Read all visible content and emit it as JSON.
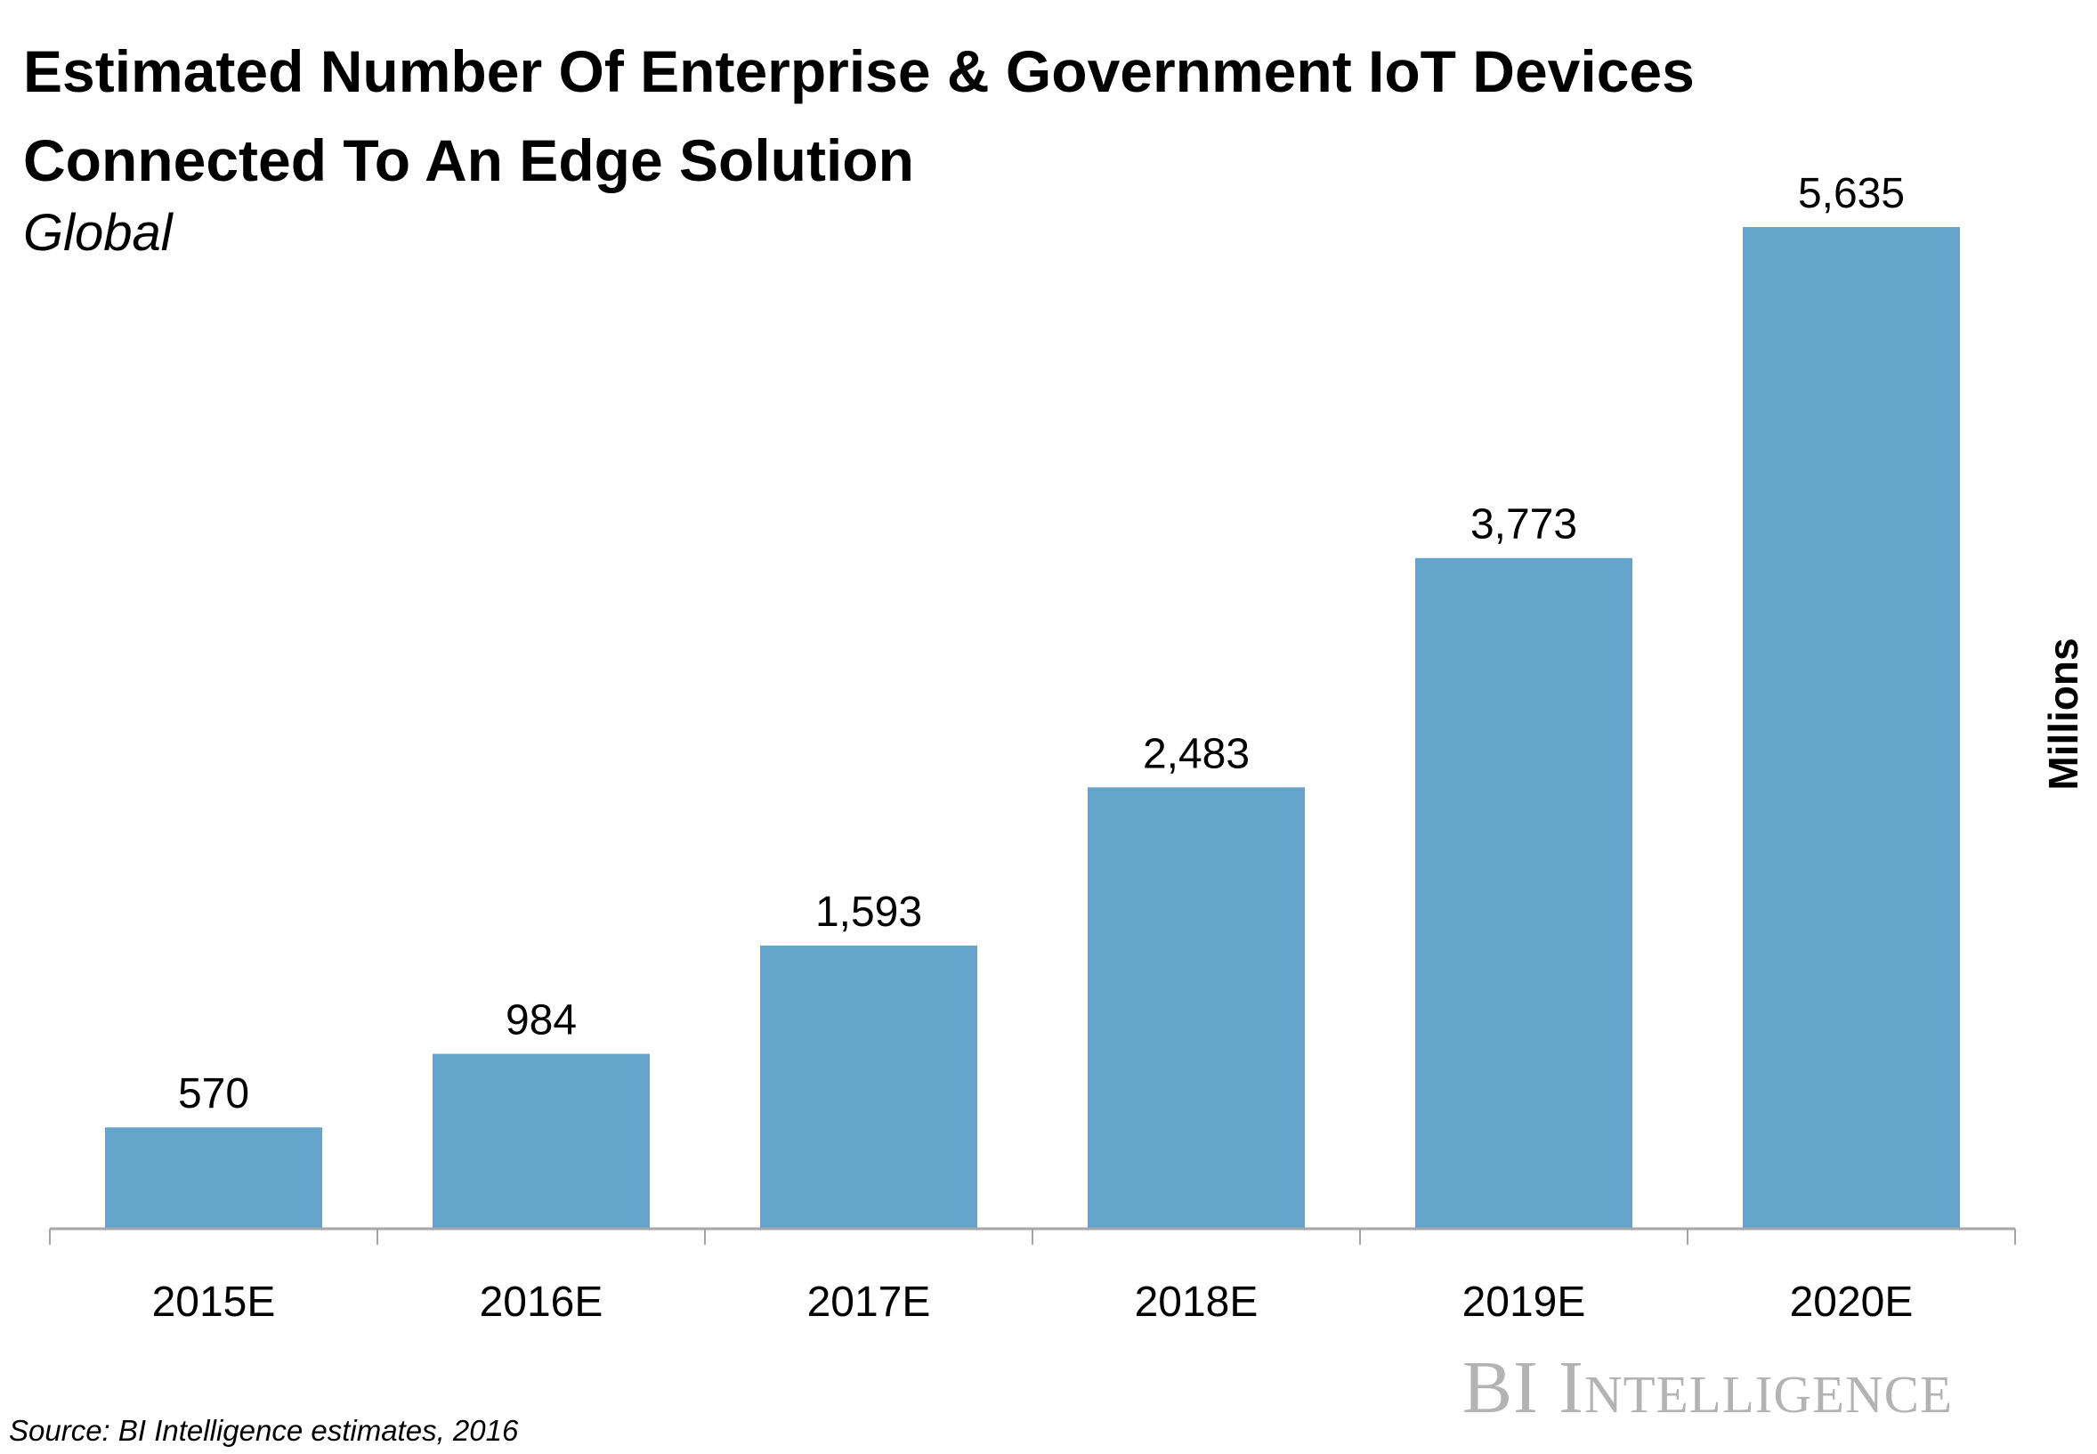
{
  "chart_data": {
    "type": "bar",
    "title": "Estimated Number Of Enterprise & Government IoT Devices Connected To An Edge Solution",
    "subtitle": "Global",
    "ylabel": "Millions",
    "xlabel": "",
    "categories": [
      "2015E",
      "2016E",
      "2017E",
      "2018E",
      "2019E",
      "2020E"
    ],
    "values": [
      570,
      984,
      1593,
      2483,
      3773,
      5635
    ],
    "data_labels": [
      "570",
      "984",
      "1,593",
      "2,483",
      "3,773",
      "5,635"
    ],
    "ylim": [
      0,
      5635
    ],
    "grid": false,
    "bar_color": "#66a5cb",
    "axis_color": "#a6a6a6"
  },
  "footer": {
    "source": "Source: BI Intelligence estimates, 2016",
    "logo": "BI Intelligence"
  }
}
